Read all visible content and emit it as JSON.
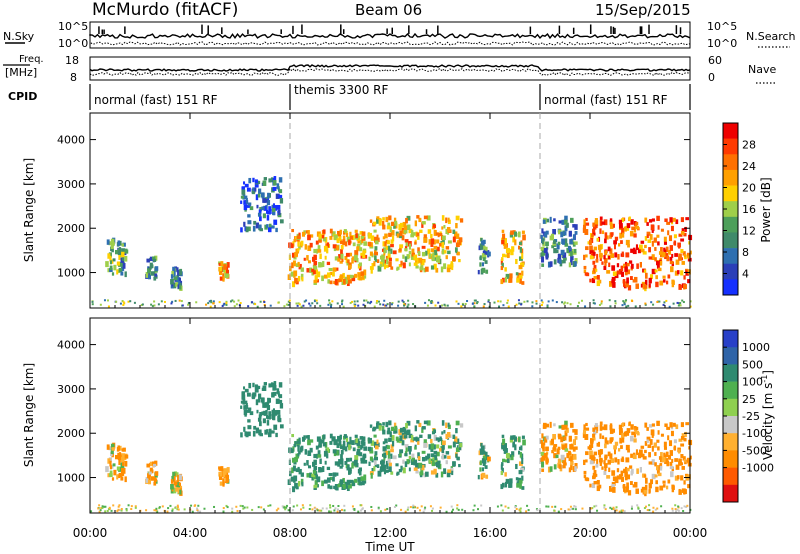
{
  "header": {
    "station": "McMurdo (fitACF)",
    "beam": "Beam 06",
    "date": "15/Sep/2015"
  },
  "chart_data": {
    "type": "heatmap",
    "time_ticks": [
      "00:00",
      "04:00",
      "08:00",
      "12:00",
      "16:00",
      "20:00",
      "00:00"
    ],
    "time_range_hours": [
      0,
      24
    ],
    "xlabel": "Time UT",
    "mode_change_hours": [
      8,
      18
    ],
    "param_panels": {
      "nsky": {
        "label": "N.Sky",
        "ticks": [
          "10^5",
          "10^0"
        ]
      },
      "nsearch": {
        "label": "N.Search",
        "ticks": [
          "10^5",
          "10^0"
        ]
      },
      "freq": {
        "label_top": "Freq.",
        "label_unit": "[MHz]",
        "ticks": [
          "18",
          "8"
        ]
      },
      "nave": {
        "label": "Nave",
        "ticks": [
          "60",
          "0"
        ]
      },
      "cpid": {
        "label": "CPID",
        "segments": [
          {
            "name": "normal (fast) 151 RF",
            "start_hour": 0,
            "end_hour": 8
          },
          {
            "name": "themis 3300 RF",
            "start_hour": 8,
            "end_hour": 18
          },
          {
            "name": "normal (fast) 151 RF",
            "start_hour": 18,
            "end_hour": 24
          }
        ]
      }
    },
    "panels": [
      {
        "name": "power",
        "ylabel": "Slant Range [km]",
        "ylim": [
          200,
          4600
        ],
        "yticks": [
          1000,
          2000,
          3000,
          4000
        ],
        "colorbar": {
          "label": "Power [dB]",
          "range": [
            0,
            32
          ],
          "tick_labels": [
            "28",
            "24",
            "20",
            "16",
            "12",
            "8",
            "4"
          ],
          "colors": [
            "#1530ff",
            "#2b3fb8",
            "#2e6fb0",
            "#3f8a6a",
            "#4d9f5a",
            "#9fcf4a",
            "#ffd000",
            "#ffa000",
            "#ff7000",
            "#ff3a00",
            "#ee0000"
          ]
        }
      },
      {
        "name": "velocity",
        "ylabel": "Slant Range [km]",
        "ylim": [
          200,
          4600
        ],
        "yticks": [
          1000,
          2000,
          3000,
          4000
        ],
        "colorbar": {
          "label": "Velocity [m s^-1]",
          "tick_labels": [
            "1000",
            "500",
            "100",
            "25",
            "-25",
            "-100",
            "-500",
            "-1000"
          ],
          "colors": [
            "#2840c8",
            "#2f64a8",
            "#2f8a70",
            "#4fb050",
            "#8fd050",
            "#c8c8c8",
            "#ffb030",
            "#ff8c00",
            "#ff5a00",
            "#e01010"
          ]
        }
      }
    ],
    "echo_regions": [
      {
        "t": [
          0.6,
          1.4
        ],
        "r": [
          1000,
          1800
        ],
        "p": 12,
        "v": -150
      },
      {
        "t": [
          2.2,
          2.6
        ],
        "r": [
          900,
          1400
        ],
        "p": 10,
        "v": -120
      },
      {
        "t": [
          3.2,
          3.6
        ],
        "r": [
          700,
          1200
        ],
        "p": 9,
        "v": -110
      },
      {
        "t": [
          5.1,
          5.5
        ],
        "r": [
          900,
          1300
        ],
        "p": 22,
        "v": -130
      },
      {
        "t": [
          6.0,
          7.6
        ],
        "r": [
          2000,
          3200
        ],
        "p": 6,
        "v": 300
      },
      {
        "t": [
          7.9,
          11.0
        ],
        "r": [
          800,
          2000
        ],
        "p": 22,
        "v": 200
      },
      {
        "t": [
          11.1,
          14.8
        ],
        "r": [
          1100,
          2300
        ],
        "p": 20,
        "v": 120
      },
      {
        "t": [
          15.5,
          15.9
        ],
        "r": [
          1000,
          1800
        ],
        "p": 10,
        "v": 80
      },
      {
        "t": [
          16.4,
          17.3
        ],
        "r": [
          800,
          2000
        ],
        "p": 20,
        "v": 150
      },
      {
        "t": [
          18.0,
          19.4
        ],
        "r": [
          1200,
          2300
        ],
        "p": 10,
        "v": -150
      },
      {
        "t": [
          19.7,
          24.0
        ],
        "r": [
          700,
          2300
        ],
        "p": 26,
        "v": -200
      }
    ]
  }
}
